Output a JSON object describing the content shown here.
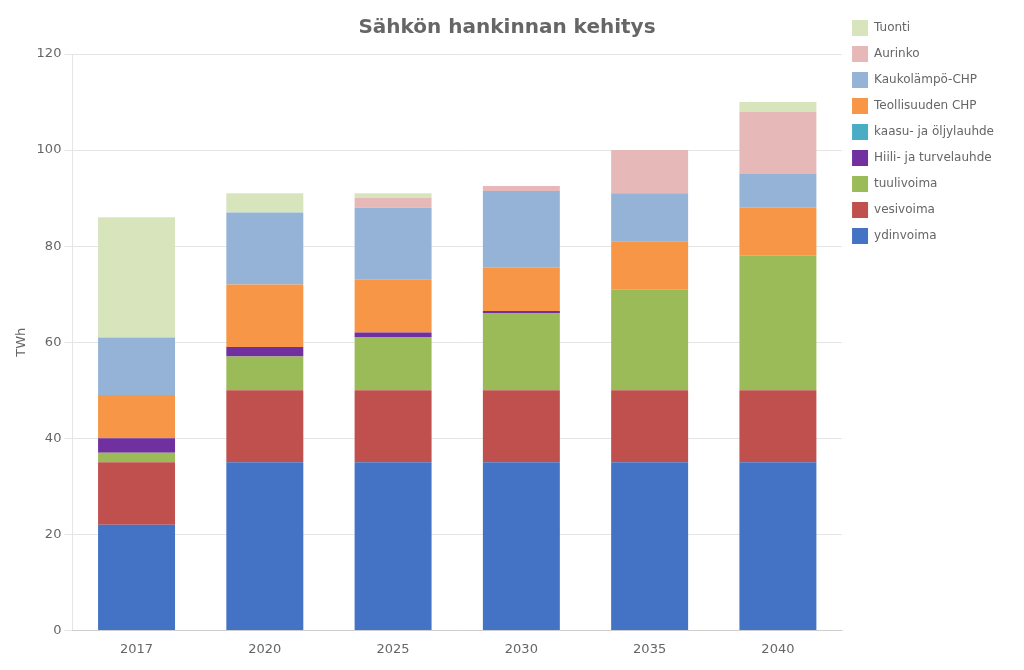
{
  "chart_data": {
    "type": "bar",
    "title": "Sähkön hankinnan kehitys",
    "ylabel": "TWh",
    "categories": [
      "2017",
      "2020",
      "2025",
      "2030",
      "2035",
      "2040"
    ],
    "series": [
      {
        "name": "ydinvoima",
        "color": "#4472C4",
        "values": [
          22,
          35,
          35,
          35,
          35,
          35
        ]
      },
      {
        "name": "vesivoima",
        "color": "#C0504D",
        "values": [
          13,
          15,
          15,
          15,
          15,
          15
        ]
      },
      {
        "name": "tuulivoima",
        "color": "#9BBB59",
        "values": [
          2,
          7,
          11,
          16,
          21,
          28
        ]
      },
      {
        "name": "Hiili- ja turvelauhde",
        "color": "#7030A0",
        "values": [
          3,
          2,
          1,
          0.5,
          0,
          0
        ]
      },
      {
        "name": "kaasu- ja öljylauhde",
        "color": "#4BACC6",
        "values": [
          0,
          0,
          0,
          0,
          0,
          0
        ]
      },
      {
        "name": "Teollisuuden CHP",
        "color": "#F79646",
        "values": [
          9,
          13,
          11,
          9,
          10,
          10
        ]
      },
      {
        "name": "Kaukolämpö-CHP",
        "color": "#95B3D7",
        "values": [
          12,
          15,
          15,
          16,
          10,
          7
        ]
      },
      {
        "name": "Aurinko",
        "color": "#E6B9B8",
        "values": [
          0,
          0,
          2,
          1,
          9,
          13
        ]
      },
      {
        "name": "Tuonti",
        "color": "#D7E4BC",
        "values": [
          25,
          4,
          1,
          0,
          0,
          2
        ]
      }
    ],
    "stacked": true,
    "ylim": [
      0,
      120
    ],
    "yticks": [
      0,
      20,
      40,
      60,
      80,
      100,
      120
    ],
    "grid": true,
    "legend": "right"
  }
}
